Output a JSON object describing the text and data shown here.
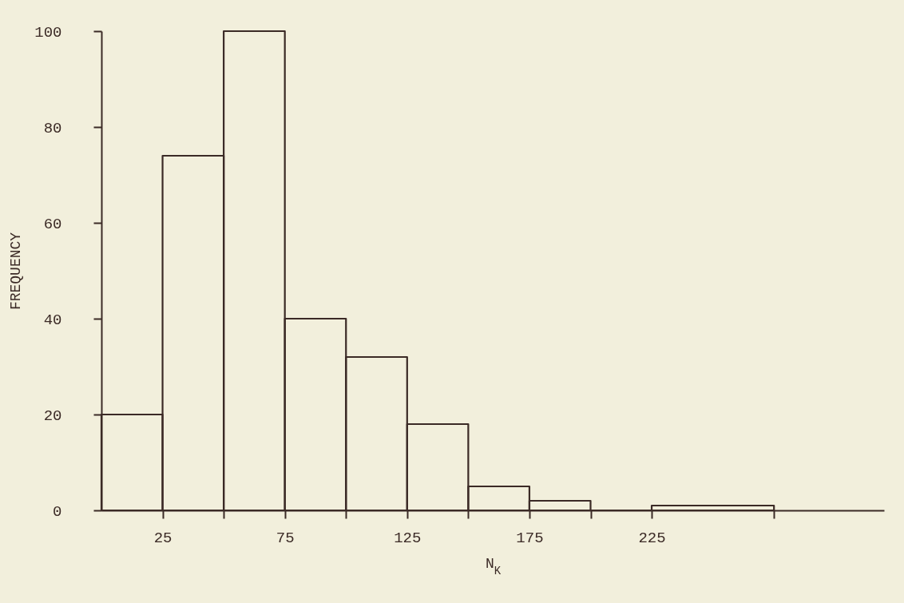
{
  "chart_data": {
    "type": "histogram",
    "xlabel": "N$_{K}$",
    "ylabel": "FREQUENCY",
    "bins": [
      0,
      25,
      50,
      75,
      100,
      125,
      150,
      175,
      200,
      225,
      275
    ],
    "values": [
      20,
      74,
      100,
      40,
      32,
      18,
      5,
      2,
      0,
      1
    ],
    "color": "#3b2a26",
    "xlim": [
      0,
      320
    ],
    "xticks": [
      25,
      {
        "value": 50,
        "label": null
      },
      75,
      {
        "value": 100,
        "label": null
      },
      125,
      {
        "value": 150,
        "label": null
      },
      175,
      {
        "value": 200,
        "label": null
      },
      225,
      {
        "value": 275,
        "label": null
      }
    ],
    "ylim": [
      0,
      100
    ],
    "yticks": [
      0,
      20,
      40,
      60,
      80,
      100
    ],
    "grid": false
  }
}
